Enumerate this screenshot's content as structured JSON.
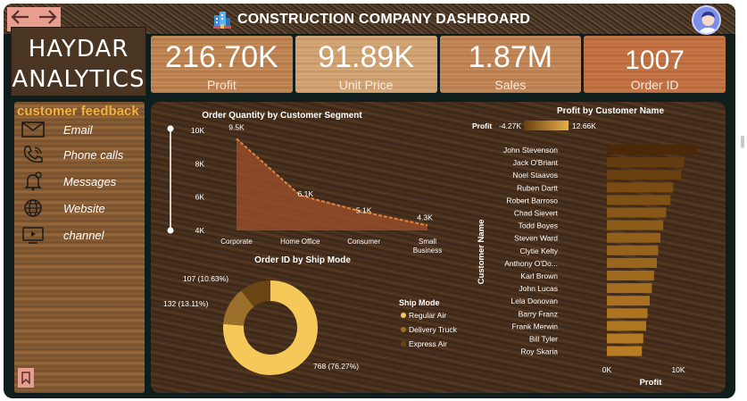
{
  "header": {
    "title": "CONSTRUCTION COMPANY DASHBOARD",
    "icons": [
      "back-arrow-icon",
      "forward-arrow-icon",
      "building-icon",
      "avatar-icon"
    ]
  },
  "brand": {
    "line1": "HAYDAR",
    "line2": "ANALYTICS"
  },
  "kpis": [
    {
      "value": "216.70K",
      "label": "Profit"
    },
    {
      "value": "91.89K",
      "label": "Unit Price"
    },
    {
      "value": "1.87M",
      "label": "Sales"
    },
    {
      "value": "1007",
      "label": "Order ID"
    }
  ],
  "sidebar": {
    "title": "customer feedback",
    "items": [
      {
        "label": "Email",
        "icon": "envelope-icon"
      },
      {
        "label": "Phone calls",
        "icon": "phone-icon"
      },
      {
        "label": "Messages",
        "icon": "bell-icon"
      },
      {
        "label": "Website",
        "icon": "globe-icon"
      },
      {
        "label": "channel",
        "icon": "tv-icon"
      }
    ]
  },
  "colors": {
    "accent": "#f2b23c",
    "area": "#a0522d",
    "line": "#e0833a",
    "regular_air": "#f5c85a",
    "delivery_truck": "#9c6f2a",
    "express_air": "#6b4414",
    "bar_dark": "#4a2808",
    "bar_light": "#b87c24"
  },
  "chart_data": [
    {
      "type": "area",
      "title": "Order Quantity by Customer Segment",
      "categories": [
        "Corporate",
        "Home Office",
        "Consumer",
        "Small Business"
      ],
      "values": [
        9500,
        6100,
        5100,
        4300
      ],
      "data_labels": [
        "9.5K",
        "6.1K",
        "5.1K",
        "4.3K"
      ],
      "yticks": [
        "4K",
        "6K",
        "8K",
        "10K"
      ],
      "ylim": [
        4000,
        10000
      ],
      "xlabel": "",
      "ylabel": ""
    },
    {
      "type": "pie",
      "title": "Order ID by Ship Mode",
      "legend_title": "Ship Mode",
      "slices": [
        {
          "name": "Regular Air",
          "value": 768,
          "label": "768 (76.27%)"
        },
        {
          "name": "Delivery Truck",
          "value": 132,
          "label": "132 (13.11%)"
        },
        {
          "name": "Express Air",
          "value": 107,
          "label": "107 (10.63%)"
        }
      ]
    },
    {
      "type": "bar",
      "title": "Profit by Customer Name",
      "orientation": "horizontal",
      "gradient_legend": {
        "label": "Profit",
        "min": "-4.27K",
        "max": "12.66K"
      },
      "ylabel": "Customer Name",
      "xlabel": "Profit",
      "xticks": [
        "0K",
        "10K"
      ],
      "xlim": [
        0,
        12500
      ],
      "categories": [
        "John Stevenson",
        "Jack O'Briant",
        "Noel Staavos",
        "Ruben Dartt",
        "Robert Barroso",
        "Chad Sievert",
        "Todd Boyes",
        "Steven Ward",
        "Clytie Kelty",
        "Anthony O'Do...",
        "Karl Brown",
        "John Lucas",
        "Lela Donovan",
        "Barry Franz",
        "Frank Merwin",
        "Bill Tyler",
        "Roy Skaria"
      ],
      "values": [
        12660,
        10800,
        10400,
        9300,
        8900,
        8300,
        7900,
        7500,
        7200,
        7000,
        6600,
        6300,
        6000,
        5700,
        5500,
        5100,
        4900
      ]
    }
  ]
}
